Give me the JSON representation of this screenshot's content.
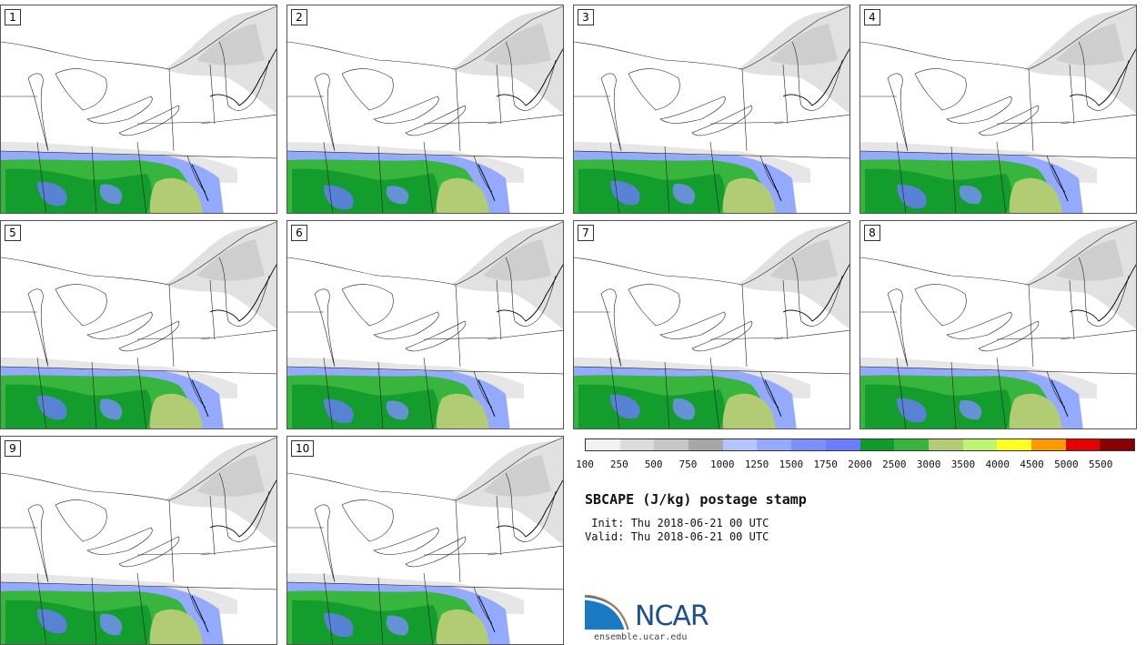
{
  "panels": [
    {
      "label": "1"
    },
    {
      "label": "2"
    },
    {
      "label": "3"
    },
    {
      "label": "4"
    },
    {
      "label": "5"
    },
    {
      "label": "6"
    },
    {
      "label": "7"
    },
    {
      "label": "8"
    },
    {
      "label": "9"
    },
    {
      "label": "10"
    }
  ],
  "colorbar": {
    "colors": [
      "#f1f1f1",
      "#dcdcdc",
      "#c6c6c6",
      "#a7a7a7",
      "#b4c4ff",
      "#93aaff",
      "#7b90ff",
      "#6a7cff",
      "#0f9a2a",
      "#38b53c",
      "#b2cc74",
      "#bff46f",
      "#ffff20",
      "#ff9a00",
      "#e60000",
      "#8a0000"
    ],
    "ticks": [
      "100",
      "250",
      "500",
      "750",
      "1000",
      "1250",
      "1500",
      "1750",
      "2000",
      "2500",
      "3000",
      "3500",
      "4000",
      "4500",
      "5000",
      "5500"
    ]
  },
  "title": "SBCAPE (J/kg) postage stamp",
  "init_text": " Init: Thu 2018-06-21 00 UTC",
  "valid_text": "Valid: Thu 2018-06-21 00 UTC",
  "logo": {
    "name": "NCAR",
    "url": "ensemble.ucar.edu"
  }
}
